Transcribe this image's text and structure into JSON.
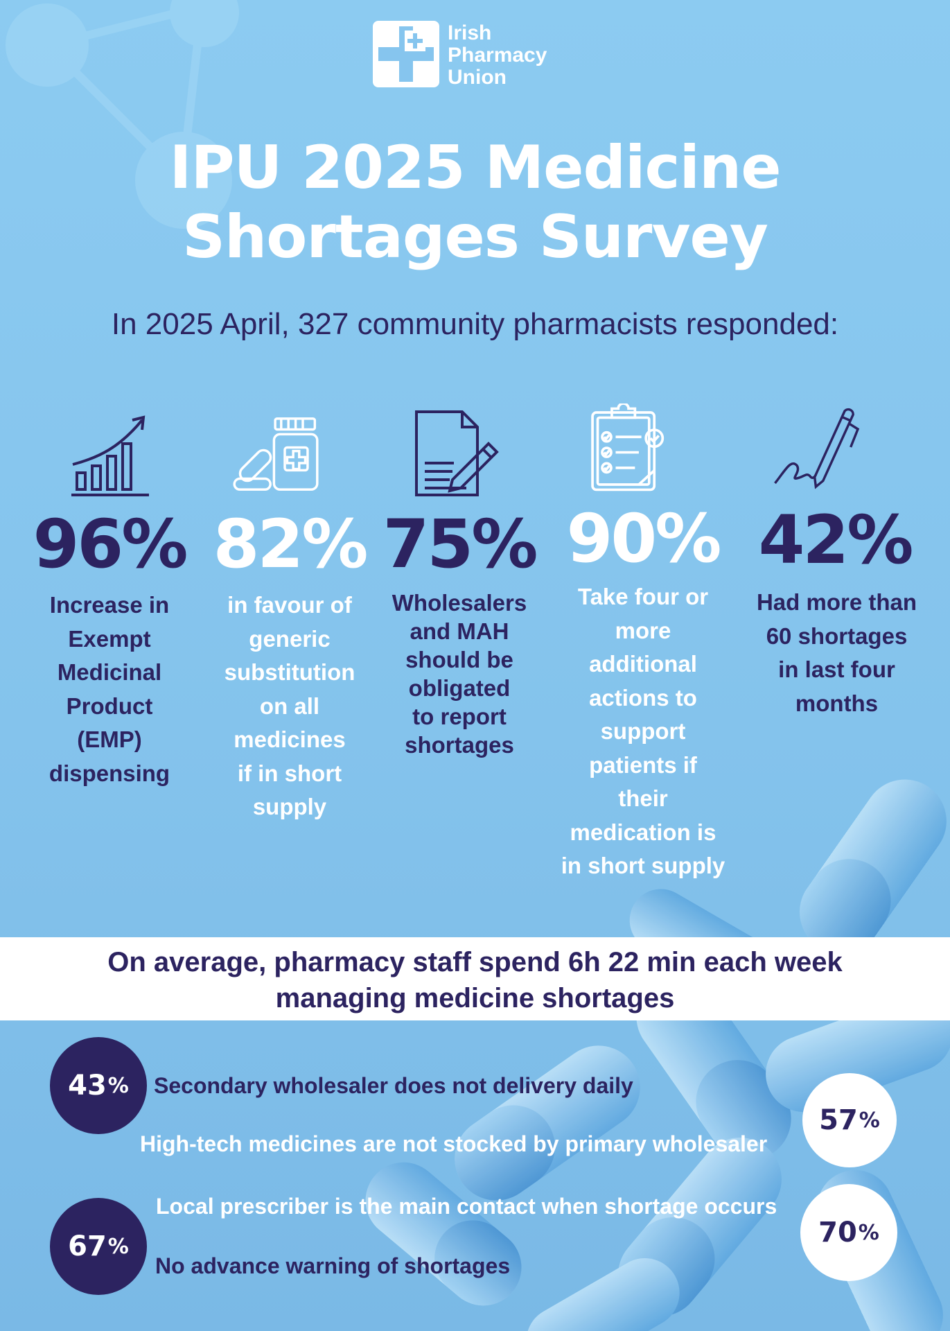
{
  "brand": {
    "logo_lines": [
      "Irish",
      "Pharmacy",
      "Union"
    ],
    "colors": {
      "background": "#86c5ee",
      "dark": "#2c2360",
      "white": "#ffffff"
    }
  },
  "title": {
    "line1": "IPU 2025 Medicine",
    "line2": "Shortages Survey"
  },
  "subtitle": "In 2025 April, 327 community pharmacists responded:",
  "stats": [
    {
      "icon": "bar-chart-growth-icon",
      "percent": "96%",
      "description": [
        "Increase in",
        "Exempt",
        "Medicinal",
        "Product",
        "(EMP)",
        "dispensing"
      ]
    },
    {
      "icon": "medicine-bottle-icon",
      "percent": "82%",
      "description": [
        "in favour of",
        "generic",
        "substitution",
        "on all",
        "medicines",
        "if in short",
        "supply"
      ]
    },
    {
      "icon": "document-pen-icon",
      "percent": "75%",
      "description": [
        "Wholesalers",
        "and MAH",
        "should be",
        "obligated",
        "to report",
        "shortages"
      ]
    },
    {
      "icon": "clipboard-checklist-icon",
      "percent": "90%",
      "description": [
        "Take four or",
        "more",
        "additional",
        "actions to",
        "support",
        "patients if",
        "their",
        "medication is",
        "in short supply"
      ]
    },
    {
      "icon": "pen-signature-icon",
      "percent": "42%",
      "description": [
        "Had more than",
        "60 shortages",
        "in last four",
        "months"
      ]
    }
  ],
  "band": {
    "line1": "On average, pharmacy staff spend 6h 22 min each week",
    "line2": "managing medicine shortages"
  },
  "findings": [
    {
      "number": "43",
      "sign": "%",
      "text": "Secondary wholesaler does not delivery daily"
    },
    {
      "number": "57",
      "sign": "%",
      "text": "High-tech medicines are not stocked by primary wholesaler"
    },
    {
      "number": "70",
      "sign": "%",
      "text": "Local prescriber is the main contact when shortage occurs"
    },
    {
      "number": "67",
      "sign": "%",
      "text": "No advance warning of shortages"
    }
  ]
}
